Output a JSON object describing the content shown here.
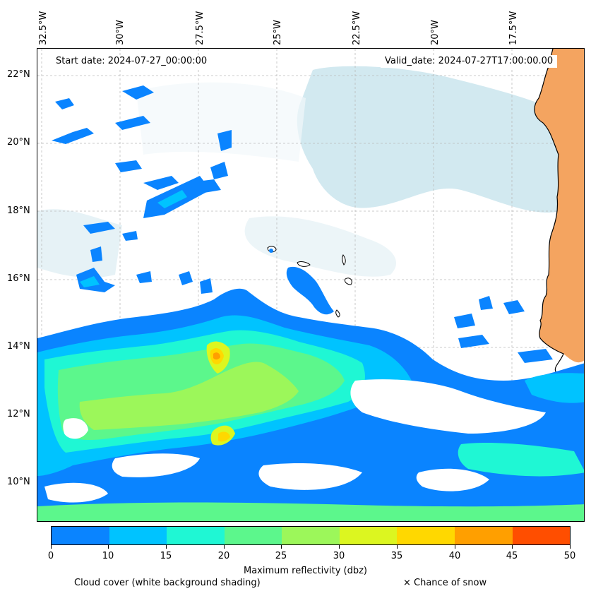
{
  "map": {
    "start_date_label": "Start date: 2024-07-27_00:00:00",
    "valid_date_label": "Valid_date: 2024-07-27T17:00:00.00",
    "longitude_labels": [
      "32.5°W",
      "30°W",
      "27.5°W",
      "25°W",
      "22.5°W",
      "20°W",
      "17.5°W"
    ],
    "latitude_labels": [
      "22°N",
      "20°N",
      "18°N",
      "16°N",
      "14°N",
      "12°N",
      "10°N"
    ],
    "region": {
      "lon_min": -33.0,
      "lon_max": -15.5,
      "lat_min": 8.8,
      "lat_max": 22.8
    },
    "colors": {
      "cloud_shading": "#b9dce7",
      "land": "#f4a460",
      "coastline": "#000000",
      "gridline": "#bbbbbb"
    }
  },
  "colorbar": {
    "label": "Maximum reflectivity (dbz)",
    "ticks": [
      "0",
      "10",
      "15",
      "20",
      "25",
      "30",
      "35",
      "40",
      "45",
      "50"
    ],
    "bins": [
      {
        "from": 0,
        "to": 10,
        "color": "#0a84ff"
      },
      {
        "from": 10,
        "to": 15,
        "color": "#00c3ff"
      },
      {
        "from": 15,
        "to": 20,
        "color": "#1ff7d4"
      },
      {
        "from": 20,
        "to": 25,
        "color": "#5cf78c"
      },
      {
        "from": 25,
        "to": 30,
        "color": "#9cf75a"
      },
      {
        "from": 30,
        "to": 35,
        "color": "#dcf620"
      },
      {
        "from": 35,
        "to": 40,
        "color": "#ffd800"
      },
      {
        "from": 40,
        "to": 45,
        "color": "#ff9f00"
      },
      {
        "from": 45,
        "to": 50,
        "color": "#ff4e00"
      }
    ]
  },
  "legend": {
    "cloud_cover_text": "Cloud cover (white background shading)",
    "snow_text": "× Chance of snow"
  }
}
